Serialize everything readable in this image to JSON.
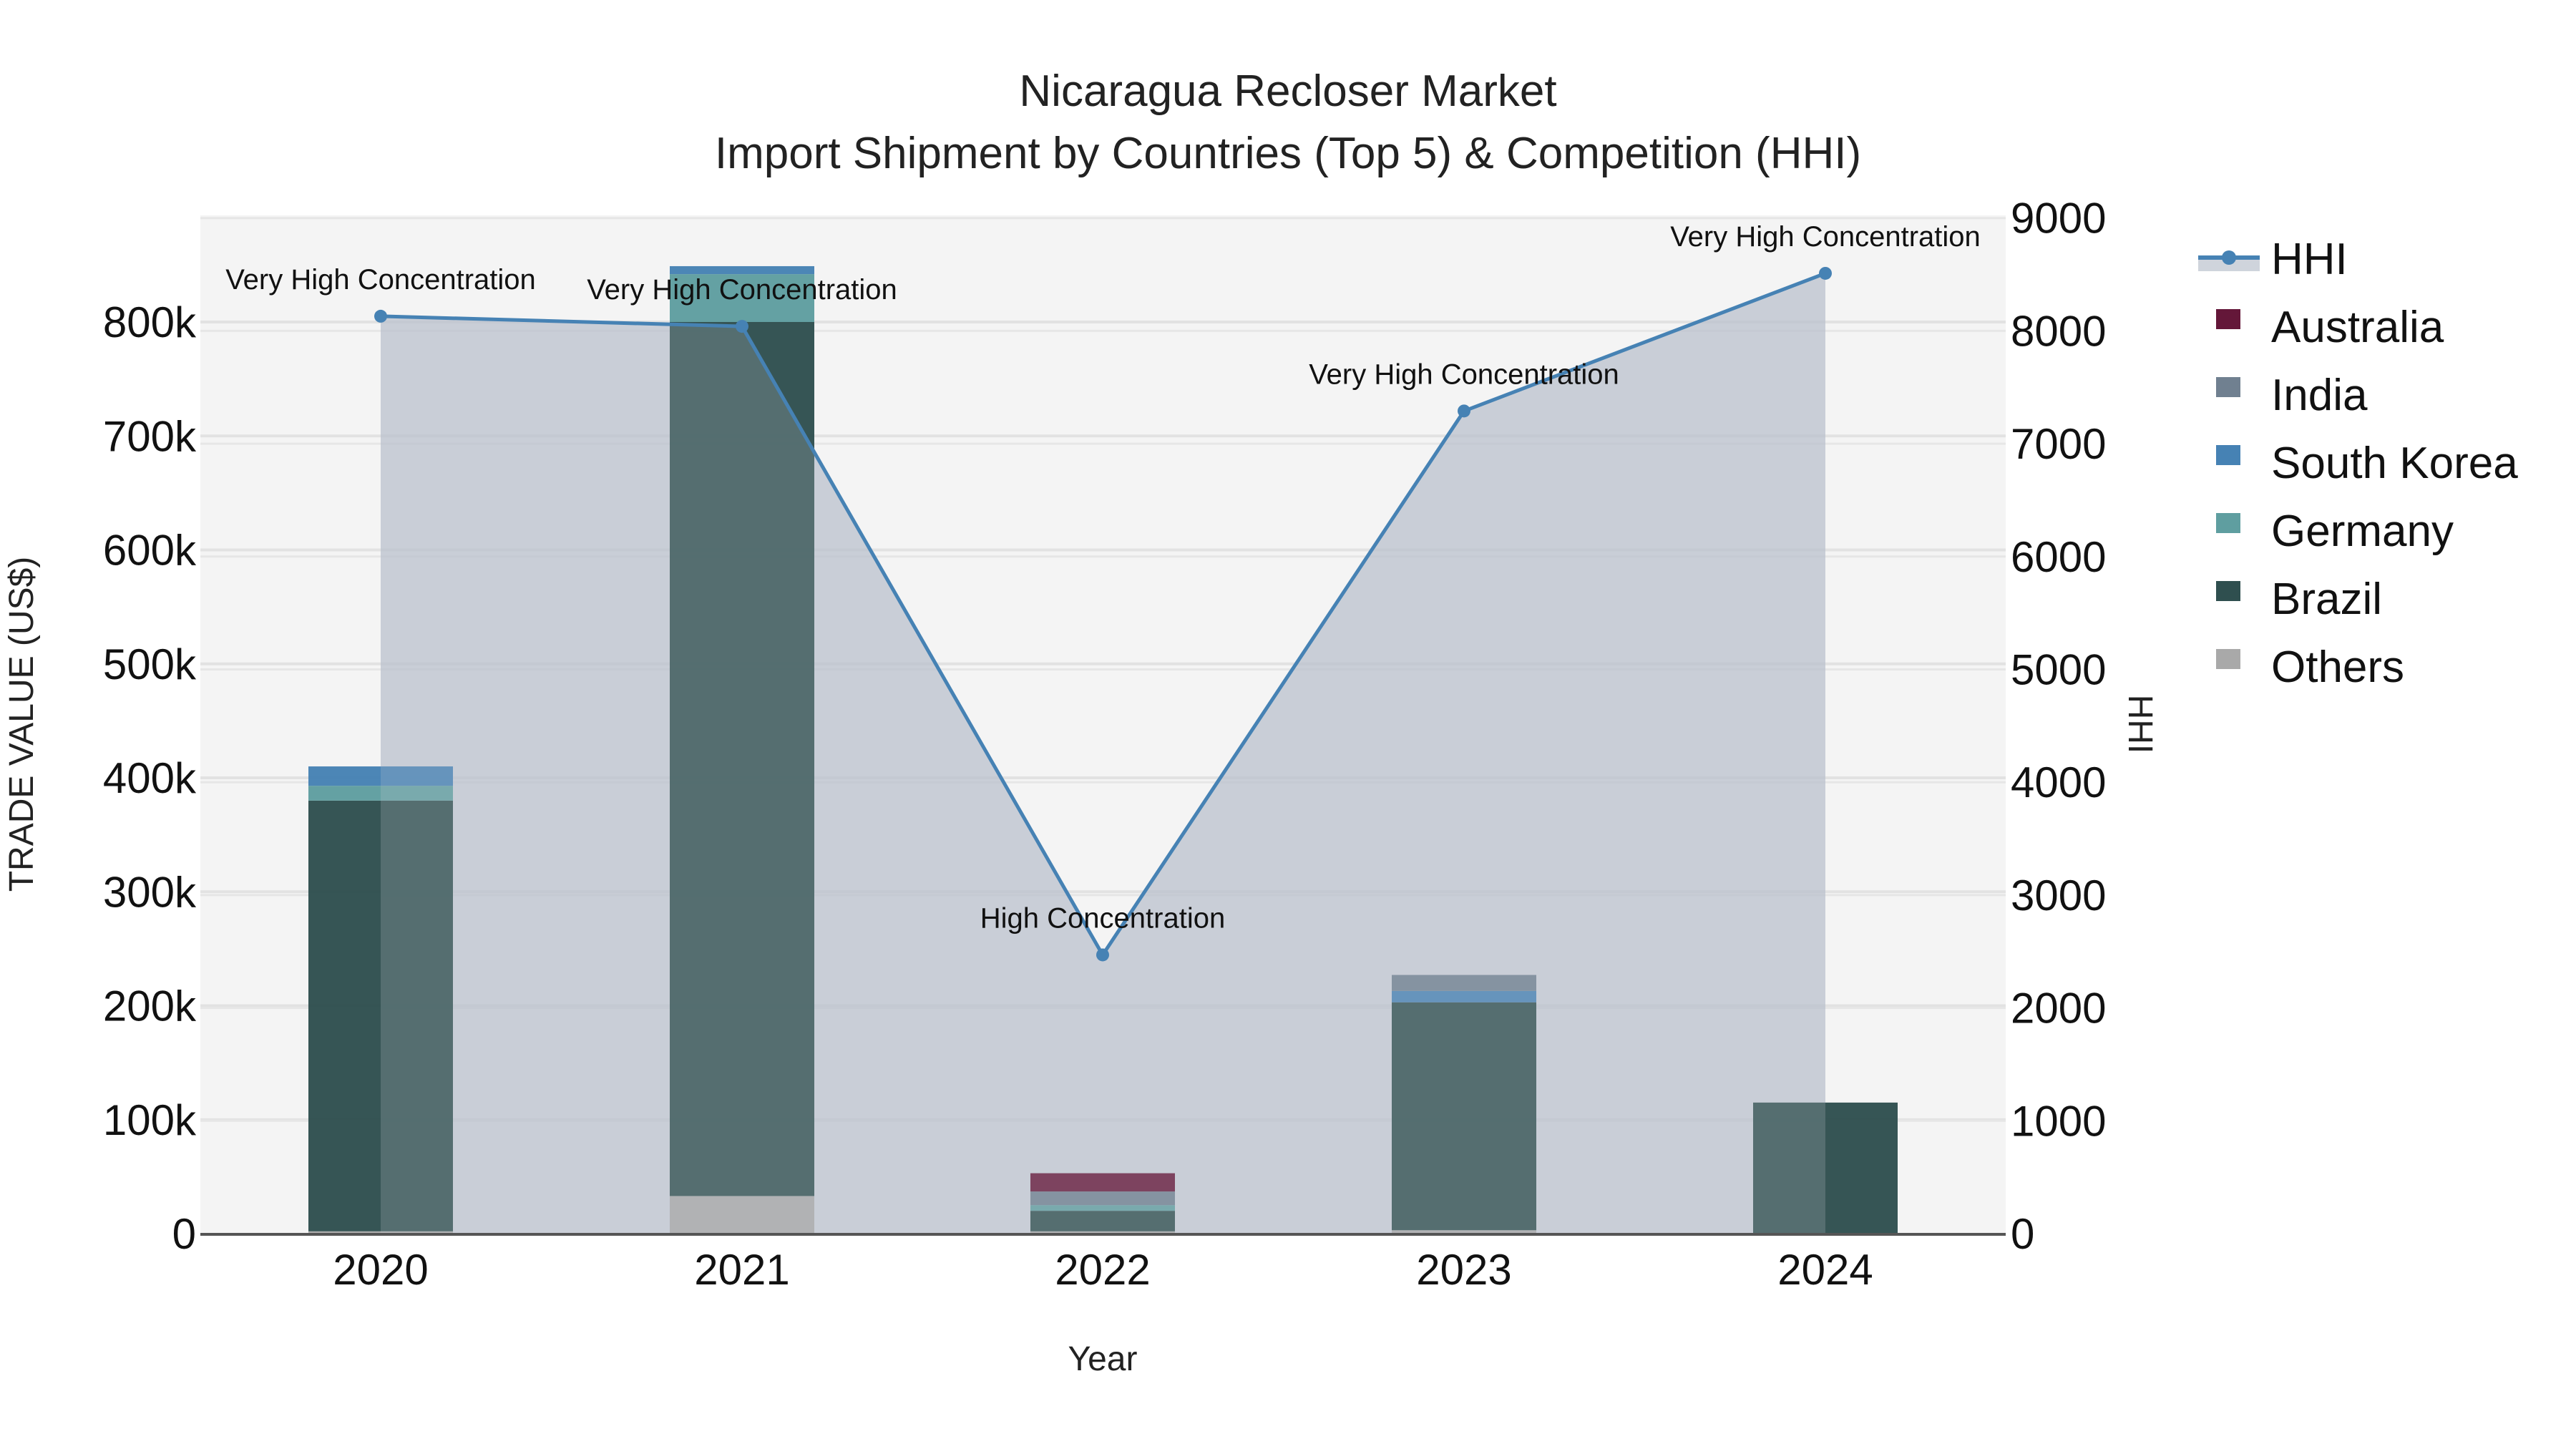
{
  "title": {
    "line1": "Nicaragua Recloser Market",
    "line2": "Import Shipment by Countries (Top 5) & Competition (HHI)"
  },
  "axes": {
    "x_title": "Year",
    "y_left_title": "TRADE VALUE (US$)",
    "y_right_title": "HHI",
    "y_left_ticks": [
      "0",
      "100k",
      "200k",
      "300k",
      "400k",
      "500k",
      "600k",
      "700k",
      "800k"
    ],
    "y_right_ticks": [
      "0",
      "1000",
      "2000",
      "3000",
      "4000",
      "5000",
      "6000",
      "7000",
      "8000",
      "9000"
    ],
    "x_ticks": [
      "2020",
      "2021",
      "2022",
      "2023",
      "2024"
    ]
  },
  "legend": [
    {
      "name": "HHI",
      "type": "line",
      "color": "#4682b4"
    },
    {
      "name": "Australia",
      "type": "bar",
      "color": "#641739"
    },
    {
      "name": "India",
      "type": "bar",
      "color": "#708090"
    },
    {
      "name": "South Korea",
      "type": "bar",
      "color": "#4682b4"
    },
    {
      "name": "Germany",
      "type": "bar",
      "color": "#5f9ea0"
    },
    {
      "name": "Brazil",
      "type": "bar",
      "color": "#2f4f4f"
    },
    {
      "name": "Others",
      "type": "bar",
      "color": "#a9a9a9"
    }
  ],
  "annotations": [
    {
      "year": "2020",
      "text": "Very High Concentration"
    },
    {
      "year": "2021",
      "text": "Very High Concentration"
    },
    {
      "year": "2022",
      "text": "High Concentration"
    },
    {
      "year": "2023",
      "text": "Very High Concentration"
    },
    {
      "year": "2024",
      "text": "Very High Concentration"
    }
  ],
  "chart_data": {
    "type": "bar",
    "title": "Nicaragua Recloser Market — Import Shipment by Countries (Top 5) & Competition (HHI)",
    "xlabel": "Year",
    "ylabel": "TRADE VALUE (US$)",
    "y2label": "HHI",
    "ylim": [
      0,
      890000
    ],
    "y2lim": [
      0,
      9000
    ],
    "grid": true,
    "legend_position": "right",
    "categories": [
      "2020",
      "2021",
      "2022",
      "2023",
      "2024"
    ],
    "stack_order": [
      "Others",
      "Brazil",
      "Germany",
      "South Korea",
      "India",
      "Australia"
    ],
    "series": [
      {
        "name": "Others",
        "type": "bar",
        "color": "#a9a9a9",
        "values": [
          2000,
          33000,
          2000,
          3000,
          0
        ]
      },
      {
        "name": "Brazil",
        "type": "bar",
        "color": "#2f4f4f",
        "values": [
          378000,
          767000,
          18000,
          200000,
          115000
        ]
      },
      {
        "name": "Germany",
        "type": "bar",
        "color": "#5f9ea0",
        "values": [
          13000,
          42000,
          5000,
          0,
          0
        ]
      },
      {
        "name": "South Korea",
        "type": "bar",
        "color": "#4682b4",
        "values": [
          17000,
          7000,
          0,
          10000,
          0
        ]
      },
      {
        "name": "India",
        "type": "bar",
        "color": "#708090",
        "values": [
          0,
          0,
          12000,
          14000,
          0
        ]
      },
      {
        "name": "Australia",
        "type": "bar",
        "color": "#641739",
        "values": [
          0,
          0,
          16000,
          0,
          0
        ]
      },
      {
        "name": "HHI",
        "type": "line",
        "axis": "y2",
        "color": "#4682b4",
        "values": [
          8130,
          8040,
          2470,
          7290,
          8510
        ],
        "labels": [
          "Very High Concentration",
          "Very High Concentration",
          "High Concentration",
          "Very High Concentration",
          "Very High Concentration"
        ]
      }
    ]
  }
}
